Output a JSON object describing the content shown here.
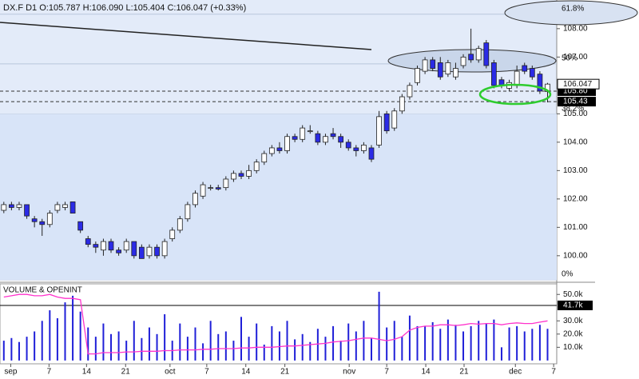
{
  "chart_data": {
    "type": "candlestick",
    "title": "DX.F D1 O:105.787 H:106.090 L:105.404 C:106.047 (+0.33%)",
    "up_color": "#ffffff",
    "down_color": "#2b2be6",
    "xlim": [
      -0.5,
      72.2
    ],
    "xticks": [
      {
        "value": 0.9,
        "label": "sep"
      },
      {
        "value": 5.9,
        "label": "7"
      },
      {
        "value": 10.8,
        "label": "14"
      },
      {
        "value": 15.9,
        "label": "21"
      },
      {
        "value": 21.7,
        "label": "oct"
      },
      {
        "value": 26.5,
        "label": "7"
      },
      {
        "value": 31.6,
        "label": "14"
      },
      {
        "value": 36.7,
        "label": "21"
      },
      {
        "value": 45.1,
        "label": "nov"
      },
      {
        "value": 50.0,
        "label": "7"
      },
      {
        "value": 55.1,
        "label": "14"
      },
      {
        "value": 60.1,
        "label": "21"
      },
      {
        "value": 66.8,
        "label": "dec"
      },
      {
        "value": 71.8,
        "label": "7"
      }
    ],
    "ylim": [
      99.15,
      109.01
    ],
    "yticks": [
      {
        "value": 100,
        "label": "100.00"
      },
      {
        "value": 101,
        "label": "101.00"
      },
      {
        "value": 102,
        "label": "102.00"
      },
      {
        "value": 103,
        "label": "103.00"
      },
      {
        "value": 104,
        "label": "104.00"
      },
      {
        "value": 105,
        "label": "105.00"
      },
      {
        "value": 107,
        "label": "107.00"
      },
      {
        "value": 108,
        "label": "108.00"
      }
    ],
    "open": [
      101.6,
      101.8,
      101.7,
      101.8,
      101.3,
      101.2,
      101.1,
      101.6,
      101.7,
      101.9,
      101.2,
      100.6,
      100.4,
      100.2,
      100.5,
      100.2,
      100.2,
      100.5,
      100.3,
      100.0,
      100.3,
      100.0,
      100.6,
      100.9,
      101.3,
      101.8,
      102.1,
      102.4,
      102.4,
      102.4,
      102.7,
      102.9,
      102.8,
      103.0,
      103.3,
      103.6,
      103.8,
      103.7,
      104.2,
      104.1,
      104.4,
      104.3,
      104.0,
      104.3,
      104.2,
      104.0,
      103.8,
      103.7,
      103.8,
      103.9,
      105.0,
      104.5,
      105.1,
      105.6,
      106.1,
      106.5,
      106.9,
      106.8,
      106.4,
      106.3,
      106.7,
      107.1,
      106.9,
      107.5,
      106.8,
      106.2,
      105.9,
      106.0,
      106.7,
      106.6,
      106.4,
      105.787
    ],
    "high": [
      101.9,
      101.9,
      101.9,
      101.8,
      101.4,
      101.3,
      101.6,
      101.9,
      101.9,
      101.9,
      101.2,
      100.7,
      100.5,
      100.6,
      100.6,
      100.3,
      100.6,
      100.5,
      100.4,
      100.4,
      100.4,
      100.6,
      101.0,
      101.4,
      101.9,
      102.3,
      102.6,
      102.5,
      102.5,
      102.8,
      103.0,
      103.0,
      103.2,
      103.4,
      103.7,
      103.9,
      104.0,
      104.3,
      104.3,
      104.6,
      104.6,
      104.4,
      104.3,
      104.5,
      104.3,
      104.1,
      103.9,
      104.0,
      103.9,
      105.1,
      105.1,
      105.2,
      105.7,
      106.1,
      106.7,
      107.0,
      107.0,
      107.0,
      106.9,
      106.8,
      107.1,
      108.0,
      107.4,
      107.6,
      106.9,
      106.3,
      106.2,
      106.7,
      106.8,
      106.7,
      106.5,
      106.09
    ],
    "low": [
      101.5,
      101.6,
      101.6,
      101.3,
      101.0,
      100.7,
      101.0,
      101.5,
      101.6,
      101.5,
      100.8,
      100.3,
      100.1,
      100.0,
      100.1,
      100.0,
      100.1,
      99.9,
      99.9,
      99.9,
      99.9,
      99.9,
      100.5,
      100.8,
      101.2,
      101.7,
      102.0,
      102.3,
      102.3,
      102.3,
      102.6,
      102.7,
      102.7,
      102.9,
      103.2,
      103.5,
      103.6,
      103.6,
      104.0,
      104.0,
      104.3,
      103.9,
      103.9,
      104.1,
      103.8,
      103.7,
      103.5,
      103.6,
      103.3,
      103.8,
      104.3,
      104.4,
      105.0,
      105.5,
      106.0,
      106.4,
      106.5,
      106.2,
      106.3,
      106.2,
      106.6,
      106.8,
      106.8,
      106.6,
      105.9,
      105.9,
      105.8,
      105.9,
      106.4,
      106.2,
      105.7,
      105.404
    ],
    "close": [
      101.8,
      101.7,
      101.8,
      101.4,
      101.2,
      101.1,
      101.5,
      101.8,
      101.8,
      101.5,
      100.9,
      100.4,
      100.3,
      100.5,
      100.2,
      100.1,
      100.5,
      100.0,
      99.9,
      100.3,
      100.0,
      100.5,
      100.9,
      101.3,
      101.8,
      102.2,
      102.5,
      102.4,
      102.35,
      102.7,
      102.9,
      102.8,
      103.0,
      103.3,
      103.6,
      103.8,
      103.7,
      104.2,
      104.1,
      104.5,
      104.4,
      104.0,
      104.2,
      104.2,
      104.0,
      103.8,
      103.7,
      103.9,
      103.4,
      104.9,
      104.4,
      105.1,
      105.6,
      106.0,
      106.6,
      106.9,
      106.6,
      106.3,
      106.8,
      106.6,
      107.0,
      106.9,
      107.3,
      106.7,
      106.0,
      106.0,
      106.1,
      106.5,
      106.5,
      106.3,
      105.8,
      106.047
    ],
    "last_price": 106.047,
    "price_lines": [
      {
        "value": 105.8,
        "label": "105.80"
      },
      105.43
    ],
    "levels": [
      {
        "label": "61.8%",
        "value": 108.51
      },
      {
        "label": "50%",
        "value": 106.76
      },
      {
        "label": "38.2%",
        "value": 104.99
      },
      {
        "label": "0%",
        "value": 99.15
      }
    ],
    "volume": {
      "title": "VOLUME & OPENINT",
      "ylim": [
        -2500,
        58000
      ],
      "yticks": [
        {
          "value": 10000,
          "label": "10.0k"
        },
        {
          "value": 20000,
          "label": "20.0k"
        },
        {
          "value": 30000,
          "label": "30.0k"
        },
        {
          "value": 50000,
          "label": "50.0k"
        }
      ],
      "marker": {
        "value": 41700,
        "label": "41.7k"
      },
      "series": [
        {
          "color": "#1f1fd8",
          "values": [
            15000,
            17000,
            14000,
            18000,
            22000,
            30000,
            38000,
            32000,
            44000,
            49000,
            37000,
            25000,
            18000,
            28000,
            20000,
            22000,
            15000,
            30000,
            17000,
            25000,
            20000,
            35000,
            15000,
            28000,
            18000,
            25000,
            13000,
            30000,
            20000,
            22000,
            15000,
            33000,
            18000,
            28000,
            12000,
            26000,
            22000,
            30000,
            16000,
            20000,
            14000,
            24000,
            18000,
            26000,
            15000,
            28000,
            22000,
            30000,
            17000,
            52000,
            25000,
            30000,
            18000,
            34000,
            26000,
            26000,
            29000,
            24000,
            31000,
            27000,
            22000,
            26000,
            30000,
            28000,
            31000,
            10000,
            25000,
            26000,
            22000,
            24000,
            27000,
            24000
          ]
        },
        {
          "color": "#ff33cc",
          "values": [
            48000,
            49000,
            50000,
            50000,
            49000,
            49000,
            50000,
            48000,
            47000,
            47000,
            46000,
            5000,
            5000,
            6000,
            6000,
            6000,
            6500,
            6500,
            7000,
            7000,
            7000,
            7500,
            7500,
            8000,
            8000,
            8000,
            8500,
            8500,
            9000,
            9000,
            9000,
            9500,
            9500,
            10000,
            10000,
            10000,
            10500,
            11000,
            11000,
            11500,
            12000,
            12500,
            13000,
            14000,
            14500,
            15000,
            16000,
            17000,
            17000,
            16000,
            15000,
            16000,
            18000,
            23000,
            25000,
            26000,
            26000,
            27000,
            27000,
            26500,
            27000,
            28000,
            27500,
            28000,
            28000,
            27000,
            28000,
            28500,
            28000,
            28000,
            29000,
            30000
          ]
        }
      ]
    }
  }
}
